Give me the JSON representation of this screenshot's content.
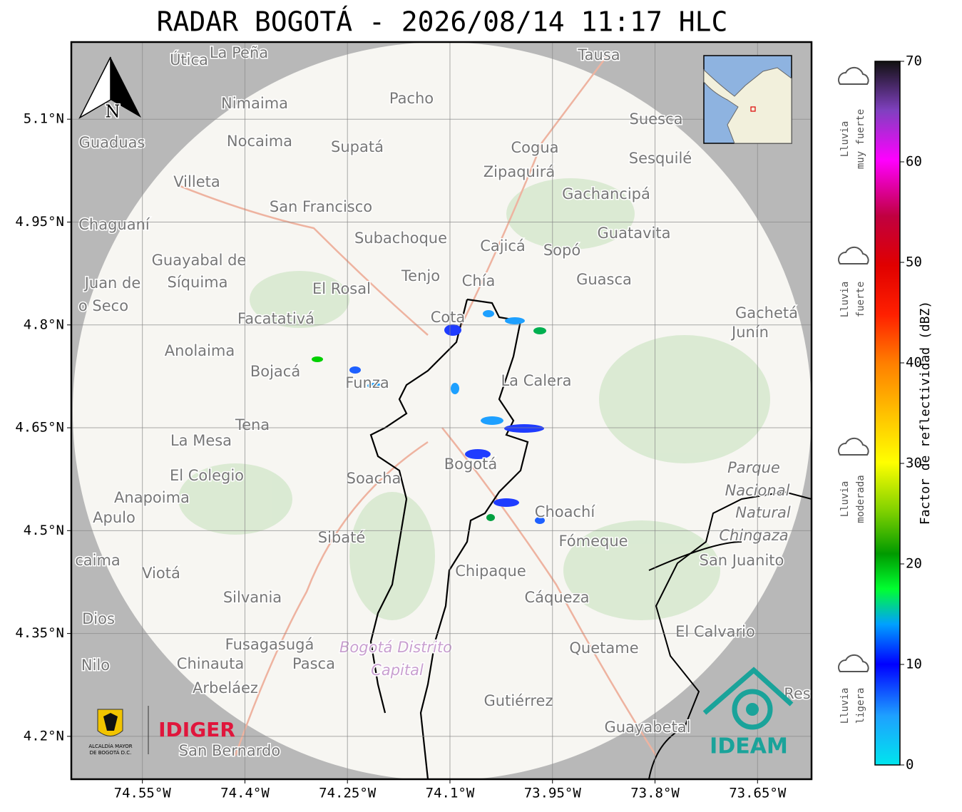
{
  "title": "RADAR BOGOTÁ - 2026/08/14 11:17 HLC",
  "north": "N",
  "logos": {
    "alcaldia": [
      "ALCALDÍA MAYOR",
      "DE BOGOTÁ D.C."
    ],
    "idiger": "IDIGER",
    "ideam": "IDEAM"
  },
  "map": {
    "xlim": [
      -74.654,
      -73.571
    ],
    "ylim": [
      4.1375,
      5.2125
    ],
    "xticks": [
      {
        "value": -74.55,
        "label": "74.55°W"
      },
      {
        "value": -74.4,
        "label": "74.4°W"
      },
      {
        "value": -74.25,
        "label": "74.25°W"
      },
      {
        "value": -74.1,
        "label": "74.1°W"
      },
      {
        "value": -73.95,
        "label": "73.95°W"
      },
      {
        "value": -73.8,
        "label": "73.8°W"
      },
      {
        "value": -73.65,
        "label": "73.65°W"
      }
    ],
    "yticks": [
      {
        "value": 5.1,
        "label": "5.1°N"
      },
      {
        "value": 4.95,
        "label": "4.95°N"
      },
      {
        "value": 4.8,
        "label": "4.8°N"
      },
      {
        "value": 4.65,
        "label": "4.65°N"
      },
      {
        "value": 4.5,
        "label": "4.5°N"
      },
      {
        "value": 4.35,
        "label": "4.35°N"
      },
      {
        "value": 4.2,
        "label": "4.2°N"
      }
    ],
    "places": [
      "Útica",
      "La Peña",
      "Tausa",
      "Pacho",
      "Nimaima",
      "Guaduas",
      "Nocaima",
      "Supatá",
      "Cogua",
      "Suesca",
      "Sesquilé",
      "Zipaquirá",
      "Villeta",
      "Gachancipá",
      "San Francisco",
      "Chaguaní",
      "Guatavita",
      "Subachoque",
      "Cajicá",
      "Sopó",
      "Guayabal de",
      "Síquima",
      "Tenjo",
      "Chía",
      "Guasca",
      "Juan de",
      "El Rosal",
      "o Seco",
      "Facatativá",
      "Gachetá",
      "Junín",
      "Anolaima",
      "Bojacá",
      "Funza",
      "La Calera",
      "Tena",
      "La Mesa",
      "El Colegio",
      "Soacha",
      "Bogotá",
      "Parque",
      "Nacional",
      "Natural",
      "Chingaza",
      "Anapoima",
      "Apulo",
      "Choachí",
      "Sibaté",
      "Fómeque",
      "San Juanito",
      "caima",
      "Viotá",
      "Chipaque",
      "Silvania",
      "Cáqueza",
      "Dios",
      "El Calvario",
      "Fusagasugá",
      "Bogotá Distrito",
      "Capital",
      "Quetame",
      "Nilo",
      "Chinauta",
      "Pasca",
      "Arbeláez",
      "Res",
      "Gutiérrez",
      "Guayabetal",
      "San Bernardo",
      "Cota"
    ]
  },
  "colorbar": {
    "label": "Factor de reflectividad (dBZ)",
    "lim": [
      0,
      70
    ],
    "ticks": [
      0,
      10,
      20,
      30,
      40,
      50,
      60,
      70
    ],
    "classes": [
      [
        "Lluvia",
        "muy fuerte"
      ],
      [
        "Lluvia",
        "fuerte"
      ],
      [
        "Lluvia",
        "moderada"
      ],
      [
        "Lluvia",
        "ligera"
      ]
    ]
  }
}
